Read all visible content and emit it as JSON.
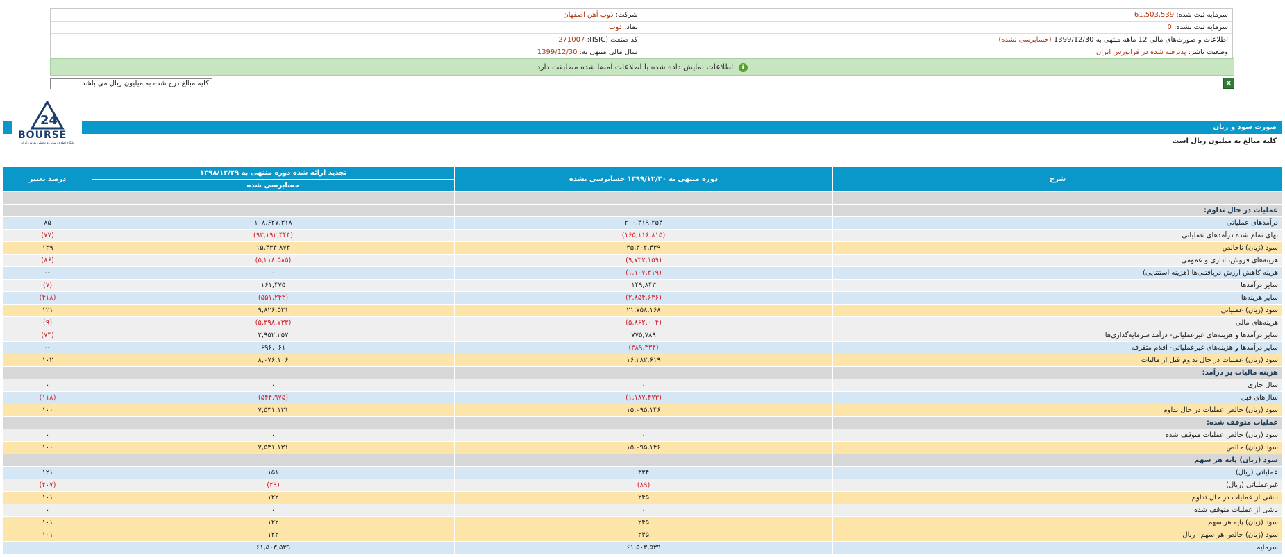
{
  "header": {
    "rows": [
      {
        "right_label": "شرکت:",
        "right_value": "ذوب آهن اصفهان",
        "left_label": "سرمایه ثبت شده:",
        "left_value": "61,503,539"
      },
      {
        "right_label": "نماد:",
        "right_value": "ذوب",
        "left_label": "سرمایه ثبت نشده:",
        "left_value": "0"
      },
      {
        "right_label": "کد صنعت (ISIC):",
        "right_value": "271007",
        "left_label": "اطلاعات و صورت‌های مالی 12 ماهه منتهی به 1399/12/30",
        "left_value": "(حسابرسی نشده)"
      },
      {
        "right_label": "سال مالی منتهی به:",
        "right_value": "1399/12/30",
        "left_label": "وضعیت ناشر:",
        "left_value": "پذیرفته شده در فرابورس ایران"
      }
    ]
  },
  "notice": {
    "text": "اطلاعات نمایش داده شده با اطلاعات امضا شده مطابقت دارد",
    "icon": "info-icon"
  },
  "unit_note": "کلیه مبالغ درج شده به میلیون ریال می باشد",
  "logo": {
    "text": "BOURSE",
    "subtitle": "پایگاه اطلاع رسانی و تحلیلی بورس ایران"
  },
  "report": {
    "title": "صورت سود و زیان",
    "unit": "کلیه مبالغ به میلیون ریال است"
  },
  "table": {
    "headers": {
      "desc": "شرح",
      "current": "دوره منتهی به ۱۳۹۹/۱۲/۳۰ حسابرسی نشده",
      "previous": "تجدید ارائه شده دوره منتهی به ۱۳۹۸/۱۲/۲۹",
      "previous_sub": "حسابرسی شده",
      "change": "درصد تغییر"
    },
    "rows": [
      {
        "type": "empty",
        "desc": "",
        "current": "",
        "previous": "",
        "change": ""
      },
      {
        "type": "sec",
        "desc": "عملیات در حال تداوم:",
        "current": "",
        "previous": "",
        "change": ""
      },
      {
        "type": "blue",
        "desc": "درآمدهای عملیاتی",
        "current": "۲۰۰,۴۱۹,۲۵۴",
        "previous": "۱۰۸,۶۲۷,۳۱۸",
        "change": "۸۵"
      },
      {
        "type": "grey",
        "desc": "بهای تمام شده درآمدهای عملیاتی",
        "current": "(۱۶۵,۱۱۶,۸۱۵)",
        "previous": "(۹۳,۱۹۲,۴۴۴)",
        "change": "(۷۷)"
      },
      {
        "type": "yellow",
        "desc": "سود (زیان) ناخالص",
        "current": "۳۵,۳۰۲,۴۳۹",
        "previous": "۱۵,۴۳۴,۸۷۴",
        "change": "۱۲۹"
      },
      {
        "type": "grey",
        "desc": "هزینه‌های فروش، اداری و عمومی",
        "current": "(۹,۷۳۲,۱۵۹)",
        "previous": "(۵,۲۱۸,۵۸۵)",
        "change": "(۸۶)"
      },
      {
        "type": "blue",
        "desc": "هزینه کاهش ارزش دریافتنی‌ها (هزینه استثنایی)",
        "current": "(۱,۱۰۷,۳۱۹)",
        "previous": "۰",
        "change": "--"
      },
      {
        "type": "grey",
        "desc": "سایر درآمدها",
        "current": "۱۴۹,۸۴۳",
        "previous": "۱۶۱,۴۷۵",
        "change": "(۷)"
      },
      {
        "type": "blue",
        "desc": "سایر هزینه‌ها",
        "current": "(۲,۸۵۴,۶۳۶)",
        "previous": "(۵۵۱,۲۴۳)",
        "change": "(۴۱۸)"
      },
      {
        "type": "yellow",
        "desc": "سود (زیان) عملیاتی",
        "current": "۲۱,۷۵۸,۱۶۸",
        "previous": "۹,۸۲۶,۵۲۱",
        "change": "۱۲۱"
      },
      {
        "type": "grey",
        "desc": "هزینه‌های مالی",
        "current": "(۵,۸۶۲,۰۰۴)",
        "previous": "(۵,۳۹۸,۷۳۳)",
        "change": "(۹)"
      },
      {
        "type": "grey",
        "desc": "سایر درآمدها و هزینه‌های غیرعملیاتی- درآمد سرمایه‌گذاری‌ها",
        "current": "۷۷۵,۷۸۹",
        "previous": "۲,۹۵۲,۲۵۷",
        "change": "(۷۴)"
      },
      {
        "type": "blue",
        "desc": "سایر درآمدها و هزینه‌های غیرعملیاتی- اقلام متفرقه",
        "current": "(۳۸۹,۳۳۴)",
        "previous": "۶۹۶,۰۶۱",
        "change": "--"
      },
      {
        "type": "yellow",
        "desc": "سود (زیان) عملیات در حال تداوم قبل از مالیات",
        "current": "۱۶,۲۸۲,۶۱۹",
        "previous": "۸,۰۷۶,۱۰۶",
        "change": "۱۰۲"
      },
      {
        "type": "sec",
        "desc": "هزینه مالیات بر درآمد:",
        "current": "",
        "previous": "",
        "change": ""
      },
      {
        "type": "grey",
        "desc": "سال جاری",
        "current": "۰",
        "previous": "۰",
        "change": "۰"
      },
      {
        "type": "blue",
        "desc": "سال‌های قبل",
        "current": "(۱,۱۸۷,۴۷۳)",
        "previous": "(۵۴۴,۹۷۵)",
        "change": "(۱۱۸)"
      },
      {
        "type": "yellow",
        "desc": "سود (زیان) خالص عملیات در حال تداوم",
        "current": "۱۵,۰۹۵,۱۴۶",
        "previous": "۷,۵۳۱,۱۳۱",
        "change": "۱۰۰"
      },
      {
        "type": "sec",
        "desc": "عملیات متوقف شده:",
        "current": "",
        "previous": "",
        "change": ""
      },
      {
        "type": "grey",
        "desc": "سود (زیان) خالص عملیات متوقف شده",
        "current": "۰",
        "previous": "۰",
        "change": "۰"
      },
      {
        "type": "yellow",
        "desc": "سود (زیان) خالص",
        "current": "۱۵,۰۹۵,۱۴۶",
        "previous": "۷,۵۳۱,۱۳۱",
        "change": "۱۰۰"
      },
      {
        "type": "sec",
        "desc": "سود (زیان) پایه هر سهم",
        "current": "",
        "previous": "",
        "change": ""
      },
      {
        "type": "blue",
        "desc": "عملیاتی (ریال)",
        "current": "۳۳۴",
        "previous": "۱۵۱",
        "change": "۱۲۱"
      },
      {
        "type": "grey",
        "desc": "غیرعملیاتی (ریال)",
        "current": "(۸۹)",
        "previous": "(۲۹)",
        "change": "(۲۰۷)"
      },
      {
        "type": "yellow",
        "desc": "ناشی از عملیات در حال تداوم",
        "current": "۲۴۵",
        "previous": "۱۲۲",
        "change": "۱۰۱"
      },
      {
        "type": "grey",
        "desc": "ناشی از عملیات متوقف شده",
        "current": "۰",
        "previous": "۰",
        "change": "۰"
      },
      {
        "type": "yellow",
        "desc": "سود (زیان) پایه هر سهم",
        "current": "۲۴۵",
        "previous": "۱۲۲",
        "change": "۱۰۱"
      },
      {
        "type": "yellow",
        "desc": "سود (زیان) خالص هر سهم– ریال",
        "current": "۲۴۵",
        "previous": "۱۲۲",
        "change": "۱۰۱"
      },
      {
        "type": "blue",
        "desc": "سرمایه",
        "current": "۶۱,۵۰۳,۵۳۹",
        "previous": "۶۱,۵۰۳,۵۳۹",
        "change": ""
      }
    ]
  }
}
